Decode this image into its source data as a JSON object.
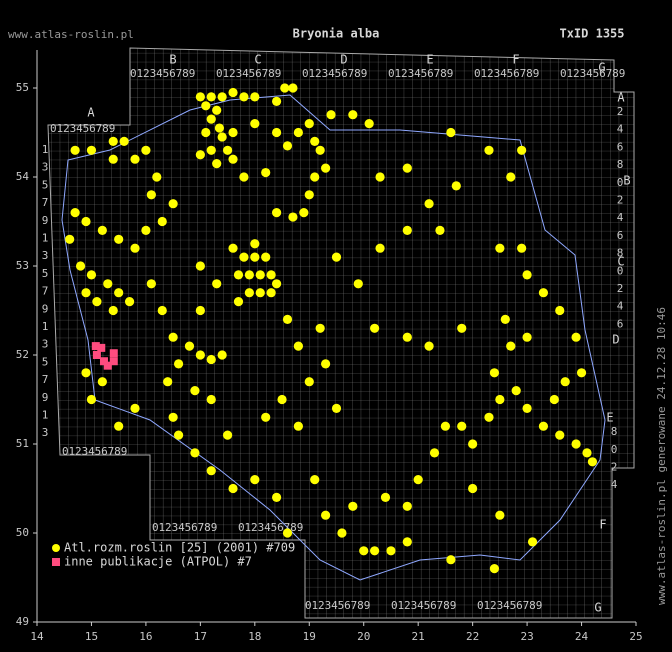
{
  "chart_data": {
    "type": "scatter",
    "title": "Bryonia alba",
    "site": "www.atlas-roslin.pl",
    "taxon_id": "TxID 1355",
    "footer": "www.atlas-roslin.pl generowane 24.12.28 10:46",
    "xlim": [
      14,
      25
    ],
    "ylim": [
      49,
      55
    ],
    "xticks": [
      14,
      15,
      16,
      17,
      18,
      19,
      20,
      21,
      22,
      23,
      24,
      25
    ],
    "yticks": [
      49,
      50,
      51,
      52,
      53,
      54,
      55
    ],
    "series": [
      {
        "name": "Atl.rozm.roslin [25] (2001) #709",
        "color": "#ffff00",
        "marker": "circle",
        "x": [
          17.0,
          17.2,
          17.4,
          17.6,
          17.8,
          18.0,
          18.55,
          18.7,
          18.4,
          17.1,
          17.3,
          17.2,
          17.35,
          17.1,
          17.4,
          17.6,
          17.2,
          17.5,
          17.0,
          17.3,
          17.6,
          18.0,
          18.4,
          18.6,
          18.8,
          19.0,
          19.1,
          19.2,
          19.4,
          19.8,
          20.1,
          19.3,
          19.1,
          19.0,
          18.9,
          18.7,
          18.4,
          18.2,
          17.8,
          14.7,
          15.0,
          15.4,
          15.6,
          15.4,
          15.8,
          16.0,
          16.2,
          16.1,
          16.5,
          16.3,
          16.0,
          15.8,
          15.5,
          15.2,
          14.9,
          14.6,
          14.7,
          14.8,
          15.0,
          15.3,
          15.5,
          15.7,
          15.4,
          15.1,
          14.9,
          16.1,
          16.3,
          16.5,
          16.8,
          17.0,
          17.2,
          17.4,
          16.6,
          16.4,
          16.9,
          17.2,
          16.5,
          15.8,
          15.5,
          15.2,
          14.9,
          15.0,
          16.6,
          16.9,
          17.2,
          17.5,
          17.0,
          17.3,
          17.6,
          17.0,
          17.7,
          17.9,
          18.1,
          18.3,
          17.8,
          18.0,
          18.2,
          17.9,
          18.1,
          18.3,
          18.0,
          17.7,
          18.4,
          18.6,
          18.8,
          19.2,
          19.3,
          19.0,
          18.5,
          18.2,
          18.8,
          19.5,
          19.1,
          19.3,
          19.6,
          20.0,
          20.2,
          20.5,
          19.8,
          20.4,
          20.8,
          21.0,
          21.3,
          21.5,
          21.8,
          22.0,
          22.3,
          22.5,
          22.8,
          23.0,
          23.3,
          23.6,
          23.9,
          24.1,
          23.5,
          22.4,
          22.7,
          23.0,
          22.6,
          21.8,
          21.2,
          20.8,
          20.2,
          19.9,
          19.5,
          20.3,
          20.8,
          21.4,
          22.5,
          22.9,
          23.0,
          23.3,
          23.6,
          23.9,
          24.0,
          23.7,
          21.6,
          22.3,
          22.9,
          22.7,
          21.7,
          21.2,
          20.3,
          20.8,
          22.0,
          22.5,
          23.1,
          22.4,
          21.6,
          20.8,
          24.2,
          18.6,
          18.4,
          18.0,
          17.6
        ],
        "values": [
          54.9,
          54.9,
          54.9,
          54.95,
          54.9,
          54.9,
          55.0,
          55.0,
          54.85,
          54.8,
          54.75,
          54.65,
          54.55,
          54.5,
          54.45,
          54.5,
          54.3,
          54.3,
          54.25,
          54.15,
          54.2,
          54.6,
          54.5,
          54.35,
          54.5,
          54.6,
          54.4,
          54.3,
          54.7,
          54.7,
          54.6,
          54.1,
          54.0,
          53.8,
          53.6,
          53.55,
          53.6,
          54.05,
          54.0,
          54.3,
          54.3,
          54.4,
          54.4,
          54.2,
          54.2,
          54.3,
          54.0,
          53.8,
          53.7,
          53.5,
          53.4,
          53.2,
          53.3,
          53.4,
          53.5,
          53.3,
          53.6,
          53.0,
          52.9,
          52.8,
          52.7,
          52.6,
          52.5,
          52.6,
          52.7,
          52.8,
          52.5,
          52.2,
          52.1,
          52.0,
          51.95,
          52.0,
          51.9,
          51.7,
          51.6,
          51.5,
          51.3,
          51.4,
          51.2,
          51.7,
          51.8,
          51.5,
          51.1,
          50.9,
          50.7,
          51.1,
          52.5,
          52.8,
          53.2,
          53.0,
          52.9,
          52.9,
          52.9,
          52.9,
          53.1,
          53.1,
          53.1,
          52.7,
          52.7,
          52.7,
          53.25,
          52.6,
          52.8,
          52.4,
          52.1,
          52.3,
          51.9,
          51.7,
          51.5,
          51.3,
          51.2,
          51.4,
          50.6,
          50.2,
          50.0,
          49.8,
          49.8,
          49.8,
          50.3,
          50.4,
          50.3,
          50.6,
          50.9,
          51.2,
          51.2,
          51.0,
          51.3,
          51.5,
          51.6,
          51.4,
          51.2,
          51.1,
          51.0,
          50.9,
          51.5,
          51.8,
          52.1,
          52.2,
          52.4,
          52.3,
          52.1,
          52.2,
          52.3,
          52.8,
          53.1,
          53.2,
          53.4,
          53.4,
          53.2,
          53.2,
          52.9,
          52.7,
          52.5,
          52.2,
          51.8,
          51.7,
          54.5,
          54.3,
          54.3,
          54.0,
          53.9,
          53.7,
          54.0,
          54.1,
          50.5,
          50.2,
          49.9,
          49.6,
          49.7,
          49.9,
          50.8,
          50.0,
          50.4,
          50.6,
          50.5
        ]
      },
      {
        "name": "inne publikacje (ATPOL) #7",
        "color": "#ff4c7f",
        "marker": "square",
        "x": [
          15.08,
          15.18,
          15.23,
          15.41,
          15.41,
          15.1,
          15.3
        ],
        "values": [
          52.1,
          52.08,
          51.93,
          52.02,
          51.93,
          52.0,
          51.88
        ]
      }
    ]
  },
  "grid_labels": {
    "letters": [
      "A",
      "B",
      "C",
      "D",
      "E",
      "F",
      "G"
    ],
    "digits": "0123456789",
    "row_digits": [
      "1",
      "3",
      "5",
      "7",
      "9"
    ],
    "row_digits_right": [
      "2",
      "4",
      "6",
      "8",
      "0"
    ]
  }
}
